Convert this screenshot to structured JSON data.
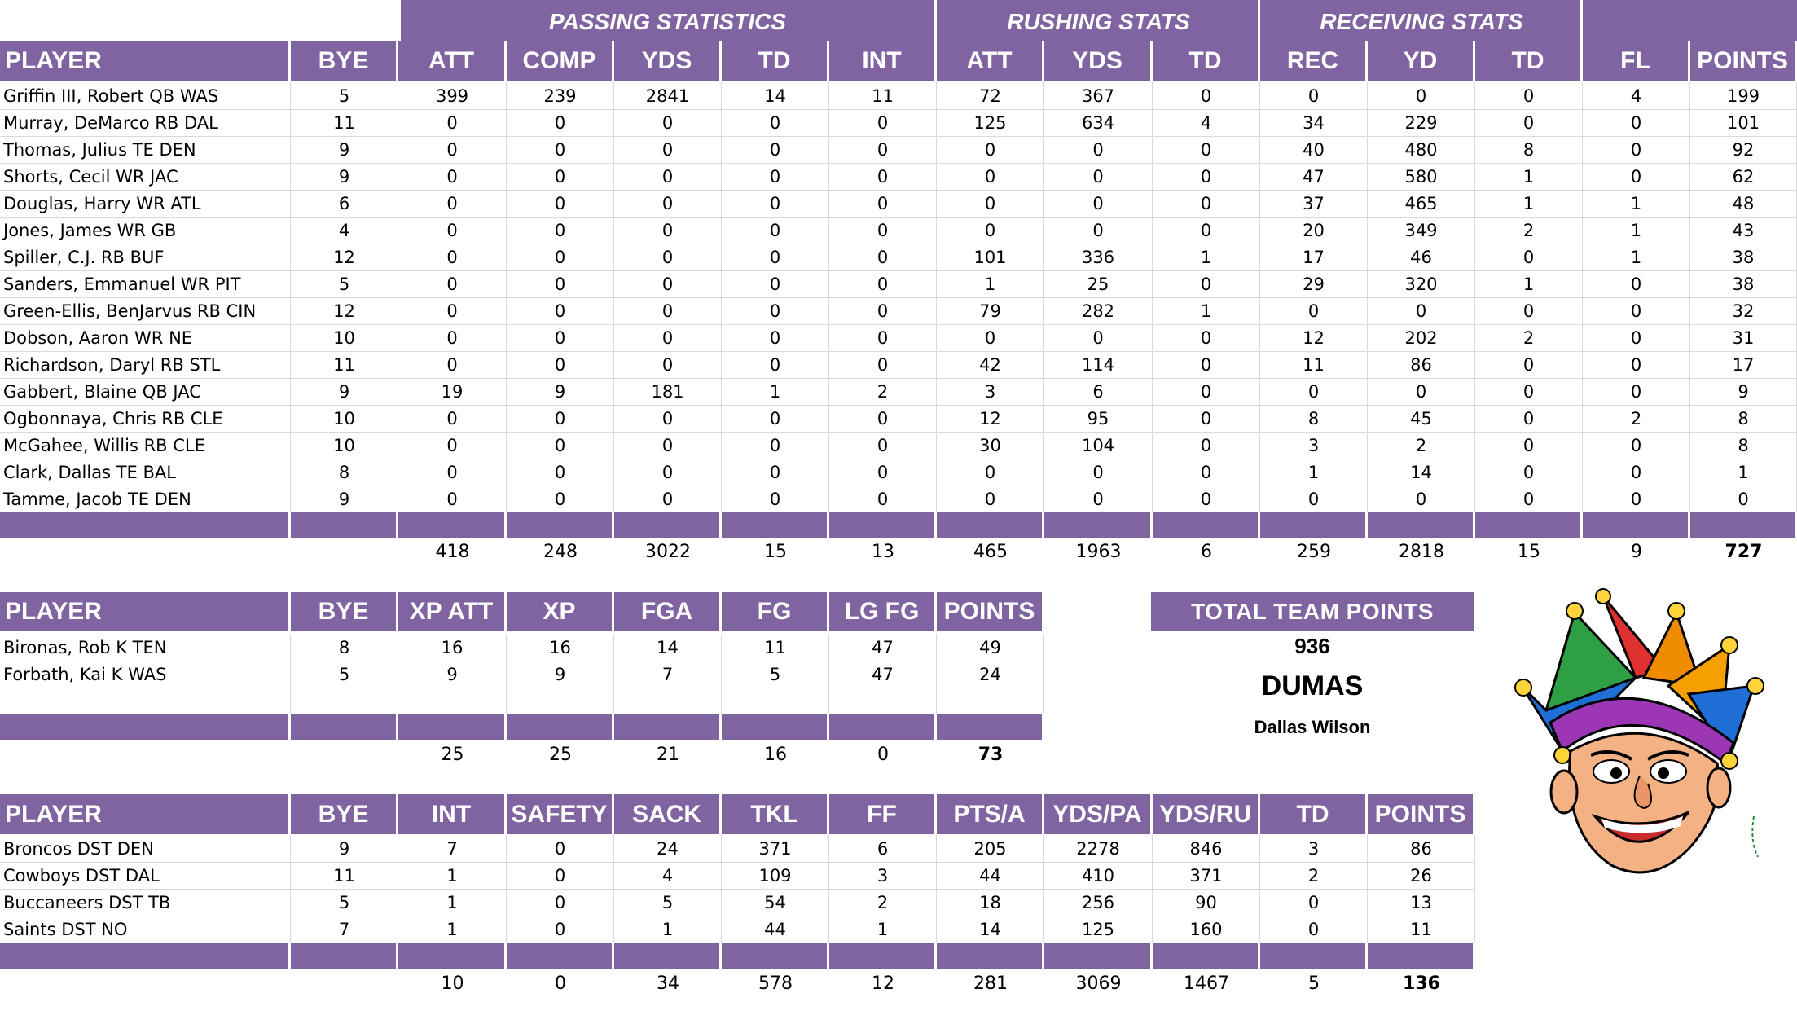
{
  "offense": {
    "groups": [
      "PASSING STATISTICS",
      "RUSHING STATS",
      "RECEIVING STATS"
    ],
    "headers": [
      "PLAYER",
      "BYE",
      "ATT",
      "COMP",
      "YDS",
      "TD",
      "INT",
      "ATT",
      "YDS",
      "TD",
      "REC",
      "YD",
      "TD",
      "FL",
      "POINTS"
    ],
    "rows": [
      [
        "Griffin III, Robert QB WAS",
        "5",
        "399",
        "239",
        "2841",
        "14",
        "11",
        "72",
        "367",
        "0",
        "0",
        "0",
        "0",
        "4",
        "199"
      ],
      [
        "Murray, DeMarco RB DAL",
        "11",
        "0",
        "0",
        "0",
        "0",
        "0",
        "125",
        "634",
        "4",
        "34",
        "229",
        "0",
        "0",
        "101"
      ],
      [
        "Thomas, Julius TE DEN",
        "9",
        "0",
        "0",
        "0",
        "0",
        "0",
        "0",
        "0",
        "0",
        "40",
        "480",
        "8",
        "0",
        "92"
      ],
      [
        "Shorts, Cecil WR JAC",
        "9",
        "0",
        "0",
        "0",
        "0",
        "0",
        "0",
        "0",
        "0",
        "47",
        "580",
        "1",
        "0",
        "62"
      ],
      [
        "Douglas, Harry WR ATL",
        "6",
        "0",
        "0",
        "0",
        "0",
        "0",
        "0",
        "0",
        "0",
        "37",
        "465",
        "1",
        "1",
        "48"
      ],
      [
        "Jones, James WR GB",
        "4",
        "0",
        "0",
        "0",
        "0",
        "0",
        "0",
        "0",
        "0",
        "20",
        "349",
        "2",
        "1",
        "43"
      ],
      [
        "Spiller, C.J. RB BUF",
        "12",
        "0",
        "0",
        "0",
        "0",
        "0",
        "101",
        "336",
        "1",
        "17",
        "46",
        "0",
        "1",
        "38"
      ],
      [
        "Sanders, Emmanuel WR PIT",
        "5",
        "0",
        "0",
        "0",
        "0",
        "0",
        "1",
        "25",
        "0",
        "29",
        "320",
        "1",
        "0",
        "38"
      ],
      [
        "Green-Ellis, BenJarvus RB CIN",
        "12",
        "0",
        "0",
        "0",
        "0",
        "0",
        "79",
        "282",
        "1",
        "0",
        "0",
        "0",
        "0",
        "32"
      ],
      [
        "Dobson, Aaron WR NE",
        "10",
        "0",
        "0",
        "0",
        "0",
        "0",
        "0",
        "0",
        "0",
        "12",
        "202",
        "2",
        "0",
        "31"
      ],
      [
        "Richardson, Daryl RB STL",
        "11",
        "0",
        "0",
        "0",
        "0",
        "0",
        "42",
        "114",
        "0",
        "11",
        "86",
        "0",
        "0",
        "17"
      ],
      [
        "Gabbert, Blaine QB JAC",
        "9",
        "19",
        "9",
        "181",
        "1",
        "2",
        "3",
        "6",
        "0",
        "0",
        "0",
        "0",
        "0",
        "9"
      ],
      [
        "Ogbonnaya, Chris RB CLE",
        "10",
        "0",
        "0",
        "0",
        "0",
        "0",
        "12",
        "95",
        "0",
        "8",
        "45",
        "0",
        "2",
        "8"
      ],
      [
        "McGahee, Willis RB CLE",
        "10",
        "0",
        "0",
        "0",
        "0",
        "0",
        "30",
        "104",
        "0",
        "3",
        "2",
        "0",
        "0",
        "8"
      ],
      [
        "Clark, Dallas TE BAL",
        "8",
        "0",
        "0",
        "0",
        "0",
        "0",
        "0",
        "0",
        "0",
        "1",
        "14",
        "0",
        "0",
        "1"
      ],
      [
        "Tamme, Jacob TE DEN",
        "9",
        "0",
        "0",
        "0",
        "0",
        "0",
        "0",
        "0",
        "0",
        "0",
        "0",
        "0",
        "0",
        "0"
      ]
    ],
    "totals": [
      "",
      "",
      "418",
      "248",
      "3022",
      "15",
      "13",
      "465",
      "1963",
      "6",
      "259",
      "2818",
      "15",
      "9",
      "727"
    ]
  },
  "kickers": {
    "headers": [
      "PLAYER",
      "BYE",
      "XP ATT",
      "XP",
      "FGA",
      "FG",
      "LG FG",
      "POINTS"
    ],
    "rows": [
      [
        "Bironas, Rob K TEN",
        "8",
        "16",
        "16",
        "14",
        "11",
        "47",
        "49"
      ],
      [
        "Forbath, Kai K WAS",
        "5",
        "9",
        "9",
        "7",
        "5",
        "47",
        "24"
      ],
      [
        "",
        "",
        "",
        "",
        "",
        "",
        "",
        ""
      ]
    ],
    "totals": [
      "",
      "",
      "25",
      "25",
      "21",
      "16",
      "0",
      "73"
    ]
  },
  "defense": {
    "headers": [
      "PLAYER",
      "BYE",
      "INT",
      "SAFETY",
      "SACK",
      "TKL",
      "FF",
      "PTS/A",
      "YDS/PA",
      "YDS/RU",
      "TD",
      "POINTS"
    ],
    "rows": [
      [
        "Broncos DST DEN",
        "9",
        "7",
        "0",
        "24",
        "371",
        "6",
        "205",
        "2278",
        "846",
        "3",
        "86"
      ],
      [
        "Cowboys DST DAL",
        "11",
        "1",
        "0",
        "4",
        "109",
        "3",
        "44",
        "410",
        "371",
        "2",
        "26"
      ],
      [
        "Buccaneers DST TB",
        "5",
        "1",
        "0",
        "5",
        "54",
        "2",
        "18",
        "256",
        "90",
        "0",
        "13"
      ],
      [
        "Saints DST NO",
        "7",
        "1",
        "0",
        "1",
        "44",
        "1",
        "14",
        "125",
        "160",
        "0",
        "11"
      ]
    ],
    "totals": [
      "",
      "",
      "10",
      "0",
      "34",
      "578",
      "12",
      "281",
      "3069",
      "1467",
      "5",
      "136"
    ]
  },
  "team": {
    "label": "TOTAL TEAM POINTS",
    "points": "936",
    "name": "DUMAS",
    "owner": "Dallas Wilson"
  },
  "colors": {
    "header": "#8064a2",
    "gridline": "#d9d9d9"
  },
  "mascot": {
    "icon": "jester-icon"
  }
}
